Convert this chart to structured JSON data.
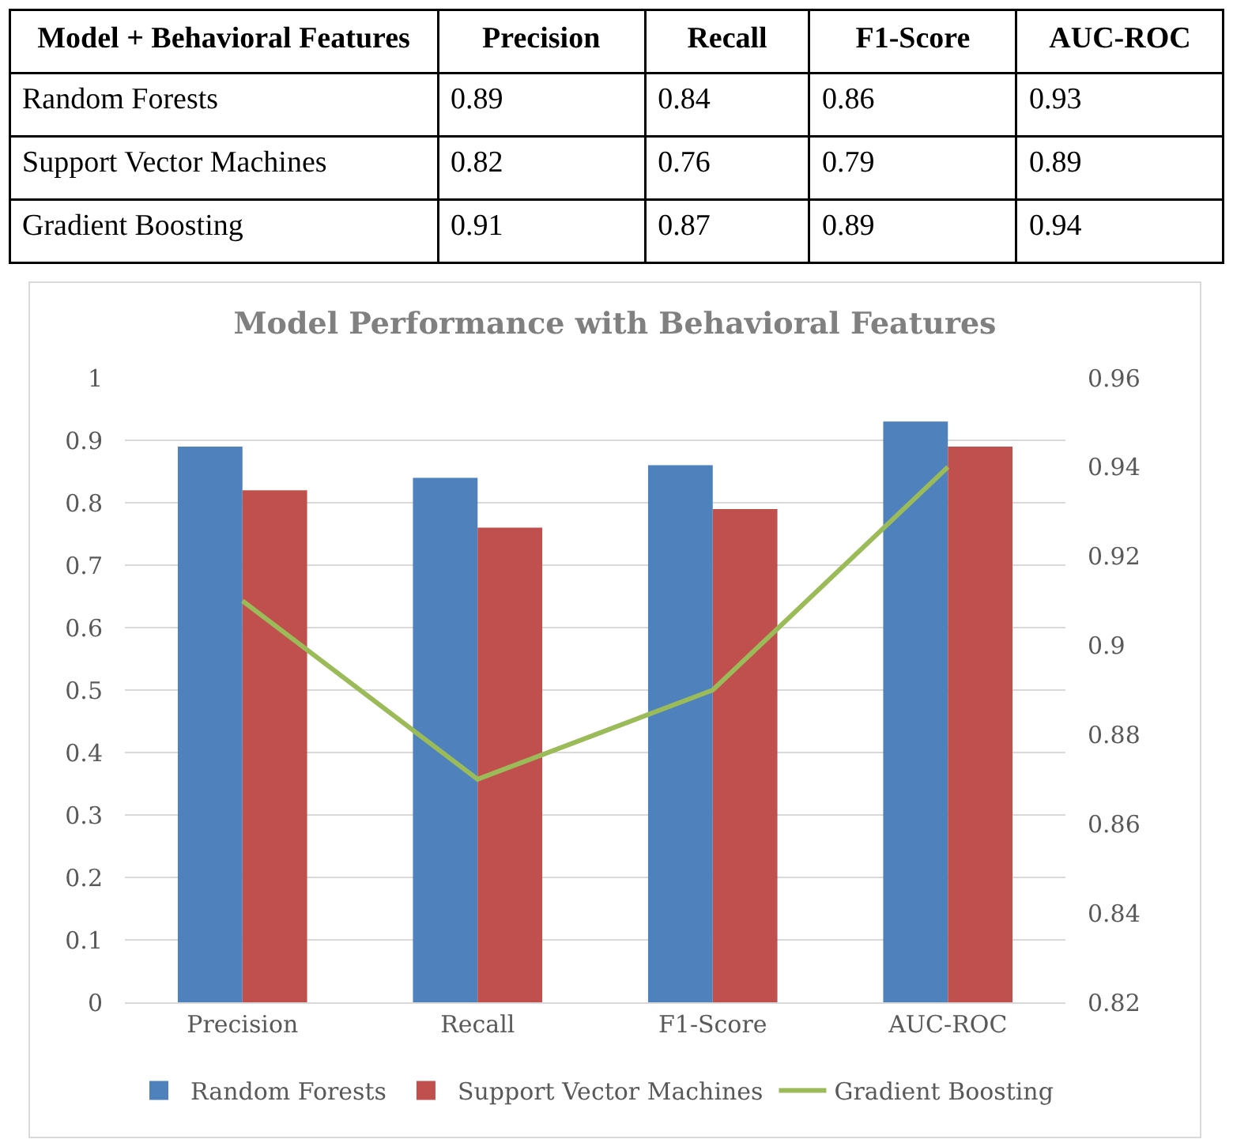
{
  "chart_data": [
    {
      "type": "other",
      "annotations": [
        "Model + Behavioral Features"
      ],
      "categories": [
        "Precision",
        "Recall",
        "F1-Score",
        "AUC-ROC"
      ],
      "series": [
        {
          "name": "Random Forests",
          "values": [
            0.89,
            0.84,
            0.86,
            0.93
          ]
        },
        {
          "name": "Support Vector Machines",
          "values": [
            0.82,
            0.76,
            0.79,
            0.89
          ]
        },
        {
          "name": "Gradient Boosting",
          "values": [
            0.91,
            0.87,
            0.89,
            0.94
          ]
        }
      ],
      "data_labels": true
    },
    {
      "type": "bar",
      "title": "Model Performance with Behavioral Features",
      "categories": [
        "Precision",
        "Recall",
        "F1-Score",
        "AUC-ROC"
      ],
      "series": [
        {
          "name": "Random Forests",
          "color": "#4f81bd",
          "values": [
            0.89,
            0.84,
            0.86,
            0.93
          ]
        },
        {
          "name": "Support Vector Machines",
          "color": "#c0504d",
          "values": [
            0.82,
            0.76,
            0.79,
            0.89
          ]
        },
        {
          "name": "Gradient Boosting",
          "color": "#9bbb59",
          "type": "line",
          "axis": "y2",
          "values": [
            0.91,
            0.87,
            0.89,
            0.94
          ]
        }
      ],
      "ylim": [
        0,
        1
      ],
      "yticks": [
        0,
        0.1,
        0.2,
        0.3,
        0.4,
        0.5,
        0.6,
        0.7,
        0.8,
        0.9,
        1
      ],
      "y2lim": [
        0.82,
        0.96
      ],
      "y2ticks": [
        0.82,
        0.84,
        0.86,
        0.88,
        0.9,
        0.92,
        0.94,
        0.96
      ],
      "grid": "y",
      "legend": "bottom",
      "marker": "none",
      "line_style": "solid"
    }
  ]
}
